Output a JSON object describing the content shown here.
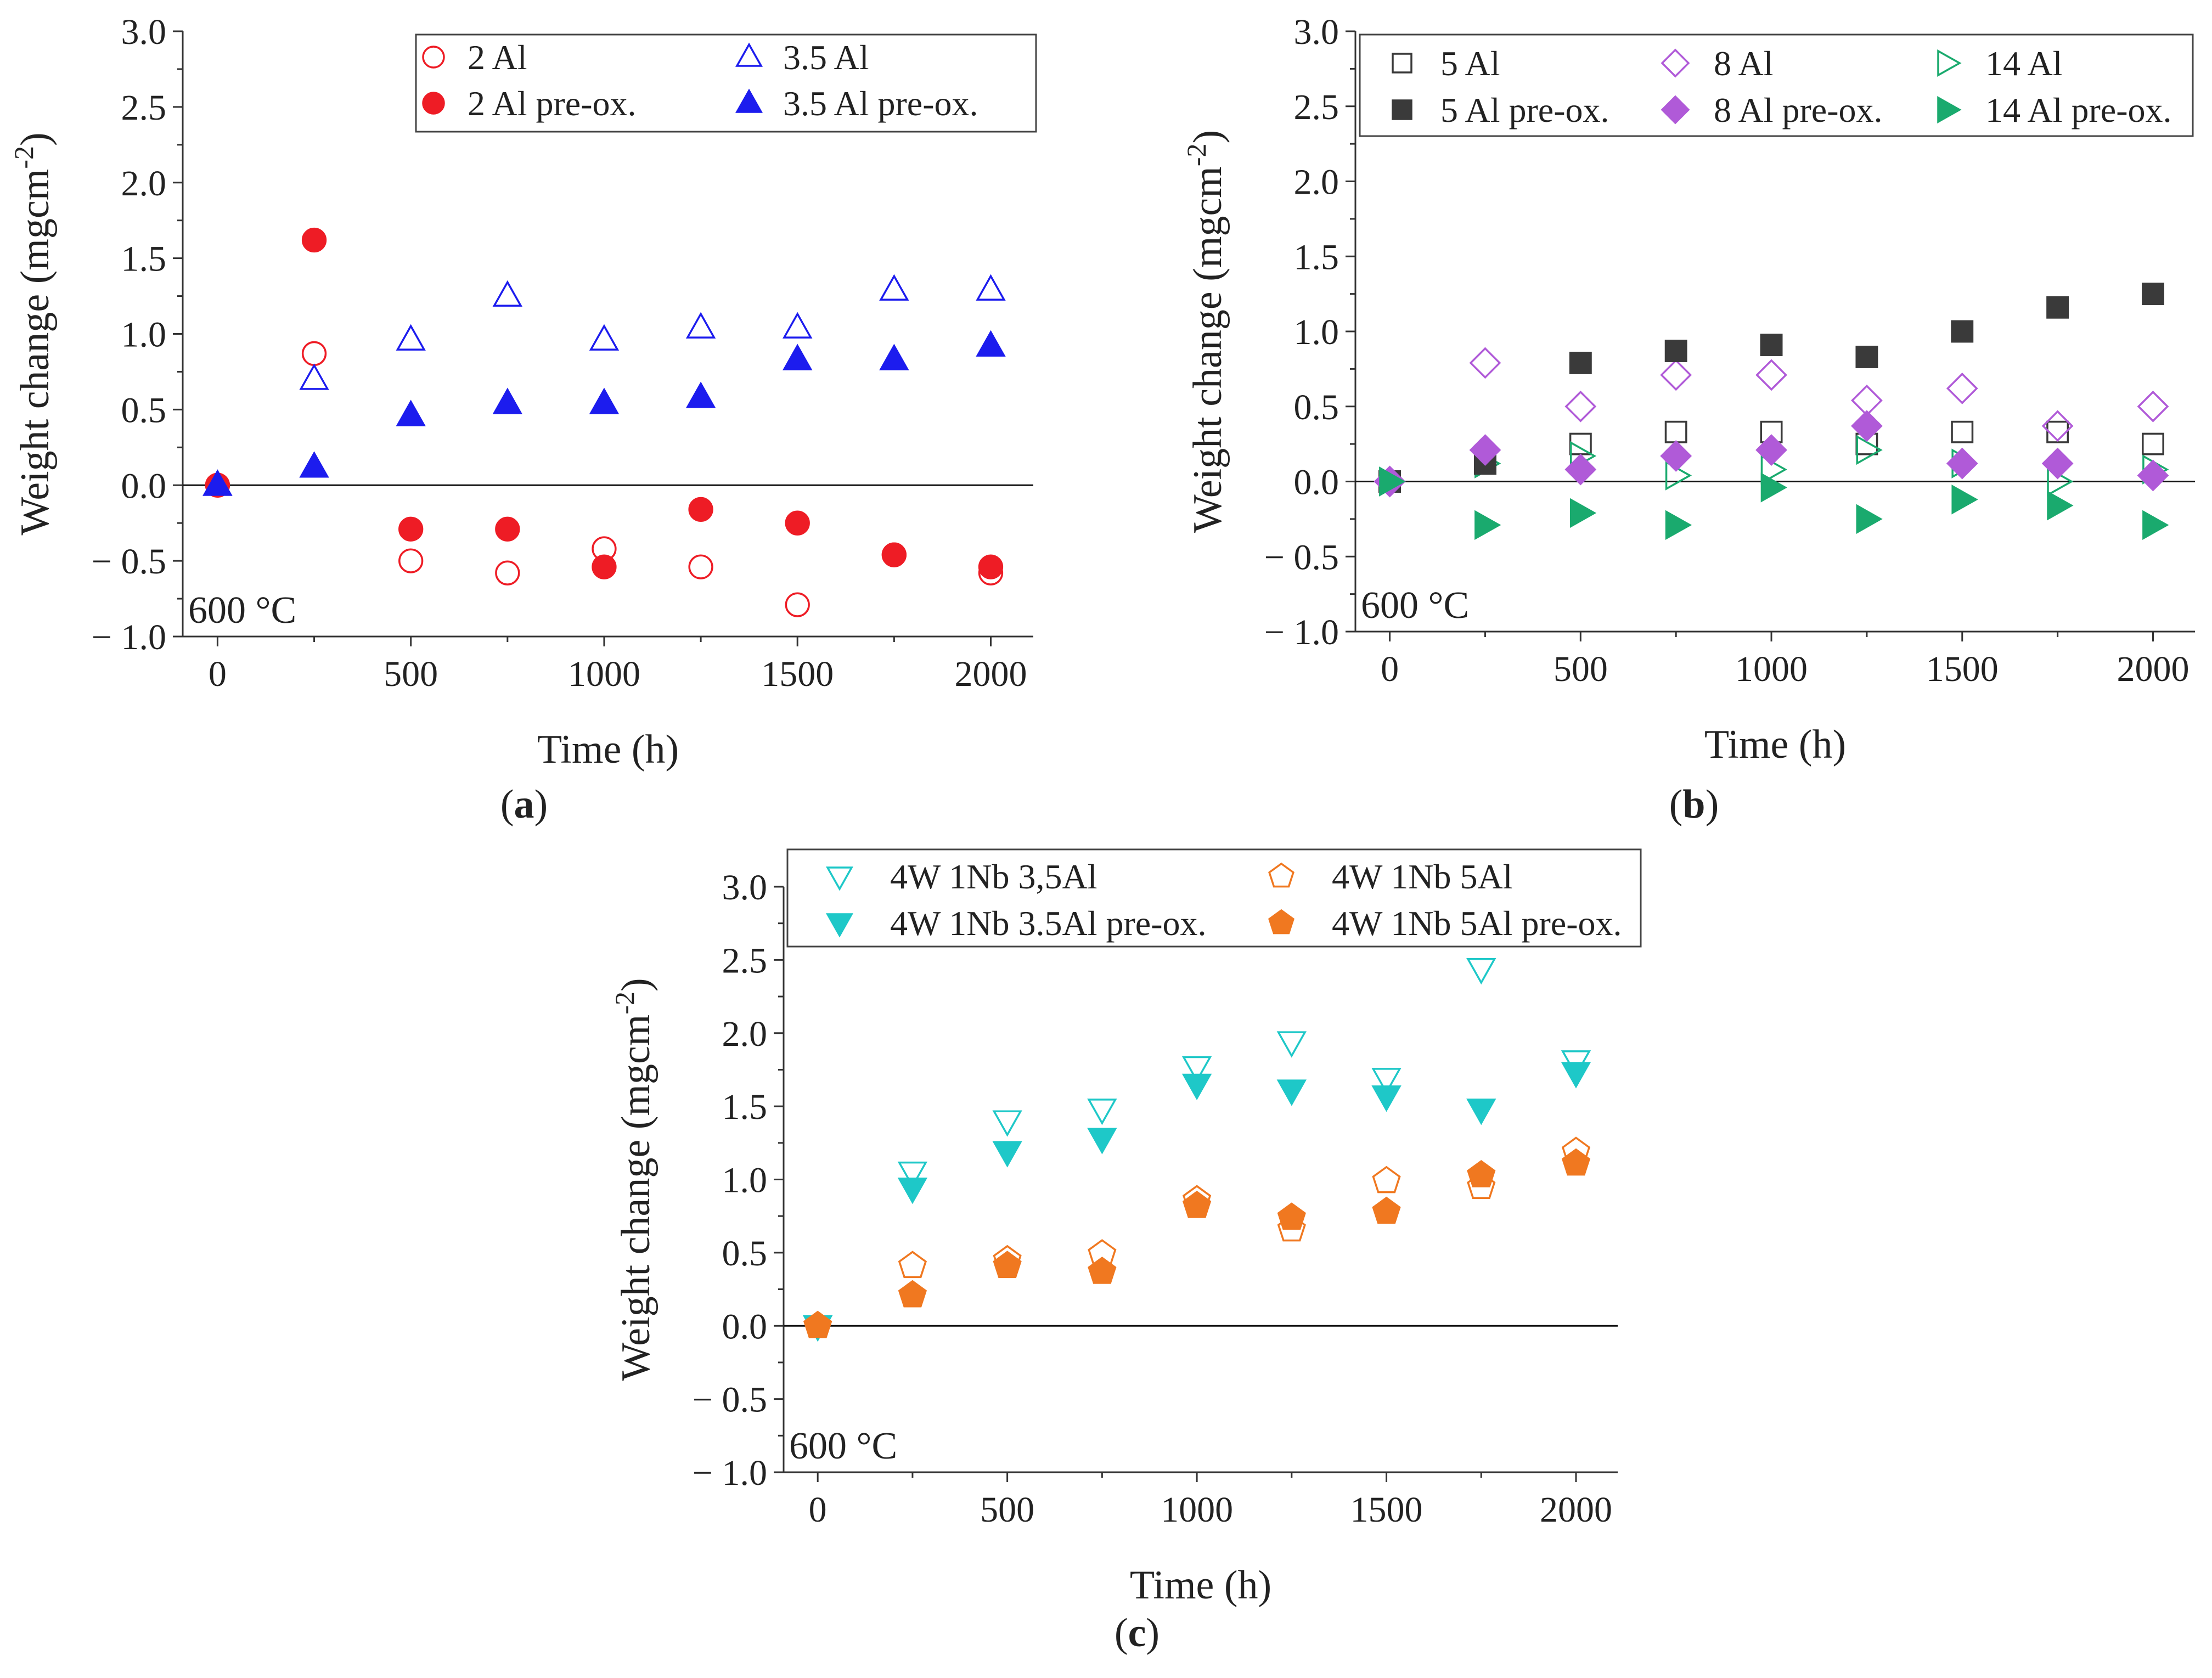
{
  "figure_labels": [
    "(a)",
    "(b)",
    "(c)"
  ],
  "chart_data": [
    {
      "type": "scatter",
      "panel": "a",
      "caption": "(a)",
      "xlabel": "Time (h)",
      "ylabel": "Weight change (mgcm-2)",
      "xlim": [
        -90,
        2110
      ],
      "ylim": [
        -1.0,
        3.0
      ],
      "xticks": [
        "0",
        "500",
        "1000",
        "1500",
        "2000"
      ],
      "yticks": [
        "− 1.0",
        "− 0.5",
        "0.0",
        "0.5",
        "1.0",
        "1.5",
        "2.0",
        "2.5",
        "3.0"
      ],
      "annotation": "600 °C",
      "legend_position": "top-right",
      "legend_columns": 2,
      "series": [
        {
          "name": "2 Al",
          "marker": "circle",
          "filled": false,
          "color": "#ee1c25",
          "x": [
            0,
            250,
            500,
            750,
            1000,
            1250,
            1500,
            1750,
            2000
          ],
          "y": [
            0.0,
            0.87,
            -0.5,
            -0.58,
            -0.42,
            -0.54,
            -0.79,
            -0.46,
            -0.58
          ]
        },
        {
          "name": "3.5 Al",
          "marker": "triangle-up",
          "filled": false,
          "color": "#1c1cee",
          "x": [
            0,
            250,
            500,
            750,
            1000,
            1250,
            1500,
            1750,
            2000
          ],
          "y": [
            0.0,
            0.7,
            0.96,
            1.25,
            0.96,
            1.04,
            1.04,
            1.29,
            1.29
          ]
        },
        {
          "name": "2 Al pre-ox.",
          "marker": "circle",
          "filled": true,
          "color": "#ee1c25",
          "x": [
            0,
            250,
            500,
            750,
            1000,
            1250,
            1500,
            1750,
            2000
          ],
          "y": [
            0.0,
            1.62,
            -0.29,
            -0.29,
            -0.54,
            -0.16,
            -0.25,
            -0.46,
            -0.54
          ]
        },
        {
          "name": "3.5 Al pre-ox.",
          "marker": "triangle-up",
          "filled": true,
          "color": "#1c1cee",
          "x": [
            0,
            250,
            500,
            750,
            1000,
            1250,
            1500,
            1750,
            2000
          ],
          "y": [
            0.0,
            0.12,
            0.46,
            0.54,
            0.54,
            0.58,
            0.83,
            0.83,
            0.92
          ]
        }
      ]
    },
    {
      "type": "scatter",
      "panel": "b",
      "caption": "(b)",
      "xlabel": "Time (h)",
      "ylabel": "Weight change (mgcm-2)",
      "xlim": [
        -90,
        2110
      ],
      "ylim": [
        -1.0,
        3.0
      ],
      "xticks": [
        "0",
        "500",
        "1000",
        "1500",
        "2000"
      ],
      "yticks": [
        "− 1.0",
        "− 0.5",
        "0.0",
        "0.5",
        "1.0",
        "1.5",
        "2.0",
        "2.5",
        "3.0"
      ],
      "annotation": "600 °C",
      "legend_position": "top",
      "legend_columns": 3,
      "series": [
        {
          "name": "5 Al",
          "marker": "square",
          "filled": false,
          "color": "#3a3a3a",
          "x": [
            0,
            250,
            500,
            750,
            1000,
            1250,
            1500,
            1750,
            2000
          ],
          "y": [
            0.0,
            0.12,
            0.25,
            0.33,
            0.33,
            0.25,
            0.33,
            0.33,
            0.25
          ]
        },
        {
          "name": "8 Al",
          "marker": "diamond",
          "filled": false,
          "color": "#b05ad8",
          "x": [
            0,
            250,
            500,
            750,
            1000,
            1250,
            1500,
            1750,
            2000
          ],
          "y": [
            0.0,
            0.79,
            0.5,
            0.71,
            0.71,
            0.54,
            0.62,
            0.37,
            0.5
          ]
        },
        {
          "name": "14 Al",
          "marker": "triangle-right",
          "filled": false,
          "color": "#1aaa6e",
          "x": [
            0,
            250,
            500,
            750,
            1000,
            1250,
            1500,
            1750,
            2000
          ],
          "y": [
            0.0,
            0.12,
            0.17,
            0.04,
            0.08,
            0.21,
            0.12,
            0.0,
            0.08
          ]
        },
        {
          "name": "5 Al pre-ox.",
          "marker": "square",
          "filled": true,
          "color": "#3a3a3a",
          "x": [
            0,
            250,
            500,
            750,
            1000,
            1250,
            1500,
            1750,
            2000
          ],
          "y": [
            0.0,
            0.12,
            0.79,
            0.87,
            0.91,
            0.83,
            1.0,
            1.16,
            1.25
          ]
        },
        {
          "name": "8 Al pre-ox.",
          "marker": "diamond",
          "filled": true,
          "color": "#b05ad8",
          "x": [
            0,
            250,
            500,
            750,
            1000,
            1250,
            1500,
            1750,
            2000
          ],
          "y": [
            0.0,
            0.21,
            0.08,
            0.17,
            0.21,
            0.37,
            0.12,
            0.12,
            0.04
          ]
        },
        {
          "name": "14 Al pre-ox.",
          "marker": "triangle-right",
          "filled": true,
          "color": "#1aaa6e",
          "x": [
            0,
            250,
            500,
            750,
            1000,
            1250,
            1500,
            1750,
            2000
          ],
          "y": [
            0.0,
            -0.29,
            -0.21,
            -0.29,
            -0.04,
            -0.25,
            -0.12,
            -0.16,
            -0.29
          ]
        }
      ]
    },
    {
      "type": "scatter",
      "panel": "c",
      "caption": "(c)",
      "xlabel": "Time (h)",
      "ylabel": "Weight change (mgcm-2)",
      "xlim": [
        -90,
        2110
      ],
      "ylim": [
        -1.0,
        3.0
      ],
      "xticks": [
        "0",
        "500",
        "1000",
        "1500",
        "2000"
      ],
      "yticks": [
        "− 1.0",
        "− 0.5",
        "0.0",
        "0.5",
        "1.0",
        "1.5",
        "2.0",
        "2.5",
        "3.0"
      ],
      "annotation": "600 °C",
      "legend_position": "top",
      "legend_columns": 2,
      "series": [
        {
          "name": "4W 1Nb 3,5Al",
          "marker": "triangle-down",
          "filled": false,
          "color": "#1ec8c8",
          "x": [
            0,
            250,
            500,
            750,
            1000,
            1250,
            1500,
            1750,
            2000
          ],
          "y": [
            0.0,
            1.05,
            1.4,
            1.48,
            1.77,
            1.94,
            1.69,
            2.44,
            1.81
          ]
        },
        {
          "name": "4W 1Nb 3.5Al pre-ox.",
          "marker": "triangle-down",
          "filled": true,
          "color": "#1ec8c8",
          "x": [
            0,
            250,
            500,
            750,
            1000,
            1250,
            1500,
            1750,
            2000
          ],
          "y": [
            0.0,
            0.94,
            1.19,
            1.28,
            1.65,
            1.61,
            1.57,
            1.48,
            1.73
          ]
        },
        {
          "name": "4W 1Nb 5Al",
          "marker": "pentagon",
          "filled": false,
          "color": "#f07820",
          "x": [
            0,
            250,
            500,
            750,
            1000,
            1250,
            1500,
            1750,
            2000
          ],
          "y": [
            0.0,
            0.41,
            0.45,
            0.49,
            0.86,
            0.66,
            0.99,
            0.95,
            1.19
          ]
        },
        {
          "name": "4W 1Nb 5Al pre-ox.",
          "marker": "pentagon",
          "filled": true,
          "color": "#f07820",
          "x": [
            0,
            250,
            500,
            750,
            1000,
            1250,
            1500,
            1750,
            2000
          ],
          "y": [
            0.0,
            0.21,
            0.41,
            0.37,
            0.82,
            0.74,
            0.78,
            1.03,
            1.11
          ]
        }
      ]
    }
  ]
}
